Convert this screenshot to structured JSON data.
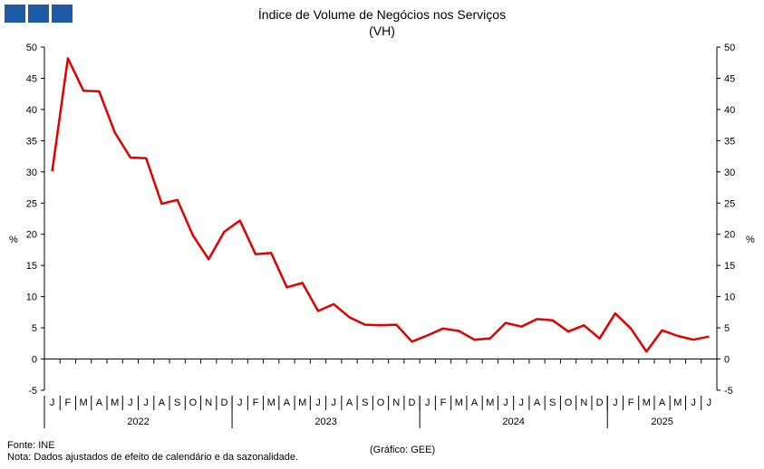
{
  "header": {
    "logo_colors": [
      "#1f5aa6",
      "#1f5aa6",
      "#1f5aa6"
    ]
  },
  "footer": {
    "source": "Fonte: INE",
    "note": "Nota: Dados ajustados de efeito de calendário e da sazonalidade.",
    "credit": "(Gráfico: GEE)"
  },
  "chart_data": {
    "type": "line",
    "title": "Índice de Volume de Negócios nos Serviços",
    "subtitle": "(VH)",
    "ylabel_left": "%",
    "ylabel_right": "%",
    "ylim": [
      -5,
      50
    ],
    "yticks": [
      -5,
      0,
      5,
      10,
      15,
      20,
      25,
      30,
      35,
      40,
      45,
      50
    ],
    "grid": false,
    "line_color": "#e00000",
    "month_labels": [
      "J",
      "F",
      "M",
      "A",
      "M",
      "J",
      "J",
      "A",
      "S",
      "O",
      "N",
      "D",
      "J",
      "F",
      "M",
      "A",
      "M",
      "J",
      "J",
      "A",
      "S",
      "O",
      "N",
      "D",
      "J",
      "F",
      "M",
      "A",
      "M",
      "J",
      "J",
      "A",
      "S",
      "O",
      "N",
      "D",
      "J",
      "F",
      "M",
      "A",
      "M",
      "J",
      "J"
    ],
    "years": [
      {
        "label": "2022",
        "start": 0,
        "count": 12
      },
      {
        "label": "2023",
        "start": 12,
        "count": 12
      },
      {
        "label": "2024",
        "start": 24,
        "count": 12
      },
      {
        "label": "2025",
        "start": 36,
        "count": 7
      }
    ],
    "series": [
      {
        "values": [
          30.1,
          48.2,
          43.0,
          42.9,
          36.3,
          32.3,
          32.2,
          24.9,
          25.5,
          19.8,
          16.0,
          20.4,
          22.2,
          16.8,
          17.0,
          11.5,
          12.2,
          7.7,
          8.8,
          6.7,
          5.5,
          5.4,
          5.5,
          2.8,
          3.8,
          4.9,
          4.5,
          3.1,
          3.3,
          5.8,
          5.2,
          6.4,
          6.2,
          4.4,
          5.4,
          3.3,
          7.3,
          4.9,
          1.2,
          4.6,
          3.7,
          3.1,
          3.6
        ]
      }
    ]
  }
}
